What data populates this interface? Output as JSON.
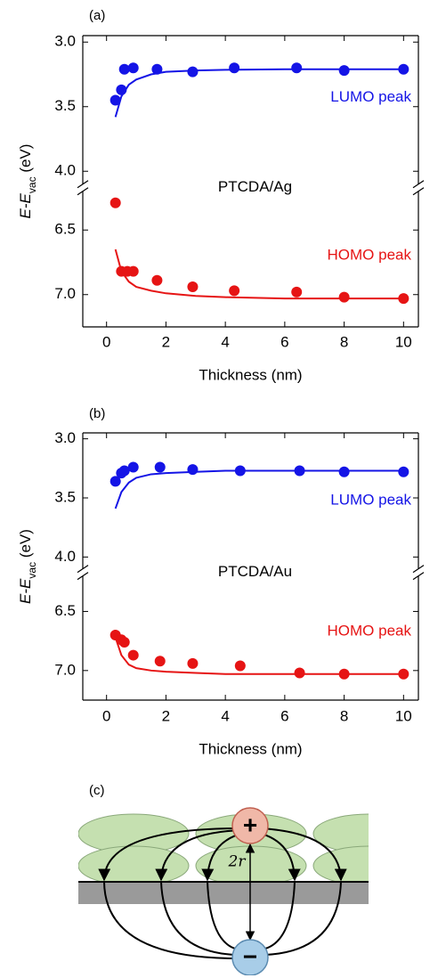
{
  "chart_data": [
    {
      "type": "scatter",
      "panel": "(a)",
      "annotation": "PTCDA/Ag",
      "xlabel": "Thickness (nm)",
      "ylabel": {
        "main": "E-E",
        "sub": "vac",
        "unit": " (eV)"
      },
      "xlim": [
        -0.8,
        10.5
      ],
      "xticks": [
        0,
        2,
        4,
        6,
        8,
        10
      ],
      "ylim": [
        2.95,
        7.25
      ],
      "ybreak": [
        4.1,
        6.2
      ],
      "yinverted": true,
      "yticks": [
        {
          "value": 3,
          "label": "3.0"
        },
        3.5,
        {
          "value": 4,
          "label": "4.0"
        },
        6.5,
        {
          "value": 7,
          "label": "7.0"
        }
      ],
      "series": [
        {
          "name": "LUMO peak",
          "color": "#1414e6",
          "x": [
            0.3,
            0.5,
            0.6,
            0.9,
            1.7,
            2.9,
            4.3,
            6.4,
            8,
            10
          ],
          "values": [
            3.45,
            3.37,
            3.21,
            3.2,
            3.21,
            3.23,
            3.2,
            3.2,
            3.22,
            3.21
          ]
        },
        {
          "name": "HOMO peak",
          "color": "#e61414",
          "x": [
            0.3,
            0.5,
            0.7,
            0.9,
            1.7,
            2.9,
            4.3,
            6.4,
            8,
            10
          ],
          "values": [
            6.29,
            6.82,
            6.82,
            6.82,
            6.89,
            6.94,
            6.97,
            6.98,
            7.02,
            7.03
          ]
        }
      ],
      "fits": [
        {
          "color": "#1414e6",
          "x": [
            0.3,
            0.5,
            0.75,
            1,
            1.5,
            2,
            3,
            4,
            6,
            8,
            10
          ],
          "values": [
            3.58,
            3.42,
            3.33,
            3.29,
            3.25,
            3.23,
            3.22,
            3.215,
            3.21,
            3.21,
            3.21
          ]
        },
        {
          "color": "#e61414",
          "x": [
            0.3,
            0.5,
            0.75,
            1,
            1.5,
            2,
            3,
            4,
            6,
            8,
            10
          ],
          "values": [
            6.65,
            6.82,
            6.9,
            6.94,
            6.97,
            6.99,
            7.01,
            7.02,
            7.03,
            7.03,
            7.03
          ]
        }
      ]
    },
    {
      "type": "scatter",
      "panel": "(b)",
      "annotation": "PTCDA/Au",
      "xlabel": "Thickness (nm)",
      "ylabel": {
        "main": "E-E",
        "sub": "vac",
        "unit": " (eV)"
      },
      "xlim": [
        -0.8,
        10.5
      ],
      "xticks": [
        0,
        2,
        4,
        6,
        8,
        10
      ],
      "ylim": [
        2.95,
        7.25
      ],
      "ybreak": [
        4.1,
        6.2
      ],
      "yinverted": true,
      "yticks": [
        {
          "value": 3,
          "label": "3.0"
        },
        3.5,
        {
          "value": 4,
          "label": "4.0"
        },
        6.5,
        {
          "value": 7,
          "label": "7.0"
        }
      ],
      "series": [
        {
          "name": "LUMO peak",
          "color": "#1414e6",
          "x": [
            0.3,
            0.5,
            0.6,
            0.9,
            1.8,
            2.9,
            4.5,
            6.5,
            8,
            10
          ],
          "values": [
            3.36,
            3.29,
            3.27,
            3.24,
            3.24,
            3.26,
            3.27,
            3.27,
            3.28,
            3.28
          ]
        },
        {
          "name": "HOMO peak",
          "color": "#e61414",
          "x": [
            0.3,
            0.5,
            0.6,
            0.9,
            1.8,
            2.9,
            4.5,
            6.5,
            8,
            10
          ],
          "values": [
            6.7,
            6.74,
            6.76,
            6.87,
            6.92,
            6.94,
            6.96,
            7.02,
            7.03,
            7.03
          ]
        }
      ],
      "fits": [
        {
          "color": "#1414e6",
          "x": [
            0.3,
            0.5,
            0.75,
            1,
            1.5,
            2,
            3,
            4,
            6,
            8,
            10
          ],
          "values": [
            3.59,
            3.45,
            3.37,
            3.33,
            3.3,
            3.29,
            3.28,
            3.27,
            3.27,
            3.27,
            3.27
          ]
        },
        {
          "color": "#e61414",
          "x": [
            0.3,
            0.5,
            0.75,
            1,
            1.5,
            2,
            3,
            4,
            6,
            8,
            10
          ],
          "values": [
            6.72,
            6.87,
            6.95,
            6.98,
            7.0,
            7.01,
            7.02,
            7.03,
            7.03,
            7.03,
            7.03
          ]
        }
      ]
    }
  ],
  "diagram": {
    "panel": "(c)",
    "plus": "+",
    "minus": "−",
    "distance": "2r"
  }
}
